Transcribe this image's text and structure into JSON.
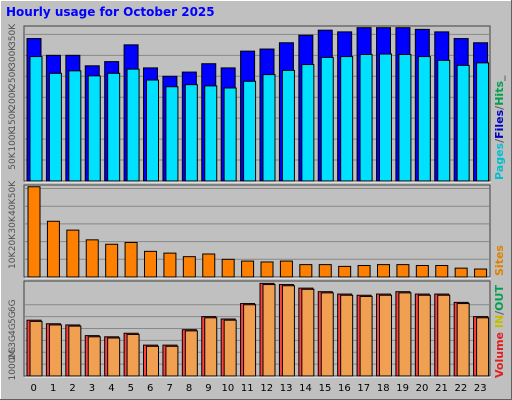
{
  "title": "Hourly usage for October 2025",
  "side_labels": {
    "top": [
      {
        "text": "Pages",
        "color": "#00c0d0"
      },
      {
        "text": "/",
        "color": "#606060"
      },
      {
        "text": "Files",
        "color": "#0000c0"
      },
      {
        "text": "/",
        "color": "#606060"
      },
      {
        "text": "Hits",
        "color": "#00a050"
      },
      {
        "text": "_",
        "color": "#606060"
      }
    ],
    "middle": {
      "text": "Sites",
      "color": "#e08000"
    },
    "bottom": [
      {
        "text": "Volume",
        "color": "#e02020"
      },
      {
        "text": "IN",
        "color": "#c0c000"
      },
      {
        "text": "/",
        "color": "#606060"
      },
      {
        "text": "OUT",
        "color": "#00a050"
      }
    ]
  },
  "colors": {
    "background": "#c0c0c0",
    "files": "#0000ff",
    "pages": "#00e0ff",
    "sites": "#ff8000",
    "volume": "#ff4040",
    "volume_out": "#f0a050",
    "title": "#0000ff",
    "grid": "#888888"
  },
  "chart_data": [
    {
      "type": "bar",
      "name": "hits-files-pages",
      "categories": [
        "0",
        "1",
        "2",
        "3",
        "4",
        "5",
        "6",
        "7",
        "8",
        "9",
        "10",
        "11",
        "12",
        "13",
        "14",
        "15",
        "16",
        "17",
        "18",
        "19",
        "20",
        "21",
        "22",
        "23"
      ],
      "series": [
        {
          "name": "Files",
          "values": [
            340000,
            300000,
            300000,
            275000,
            285000,
            325000,
            270000,
            250000,
            260000,
            280000,
            270000,
            310000,
            315000,
            330000,
            348000,
            360000,
            356000,
            366000,
            366000,
            366000,
            362000,
            356000,
            340000,
            330000
          ]
        },
        {
          "name": "Pages",
          "values": [
            297000,
            257000,
            263000,
            251000,
            257000,
            267000,
            241000,
            225000,
            230000,
            227000,
            222000,
            238000,
            254000,
            264000,
            278000,
            295000,
            297000,
            302000,
            303000,
            302000,
            297000,
            288000,
            276000,
            282000
          ]
        }
      ],
      "ylim": [
        0,
        370000
      ],
      "ytick_labels": [
        "50K",
        "100K",
        "150K",
        "200K",
        "250K",
        "300K",
        "350K"
      ]
    },
    {
      "type": "bar",
      "name": "sites",
      "categories": [
        "0",
        "1",
        "2",
        "3",
        "4",
        "5",
        "6",
        "7",
        "8",
        "9",
        "10",
        "11",
        "12",
        "13",
        "14",
        "15",
        "16",
        "17",
        "18",
        "19",
        "20",
        "21",
        "22",
        "23"
      ],
      "series": [
        {
          "name": "Sites",
          "values": [
            51000,
            31500,
            26500,
            21000,
            18500,
            19500,
            14500,
            13500,
            11500,
            13000,
            10000,
            9000,
            8500,
            9000,
            7000,
            7000,
            6000,
            6500,
            7000,
            7000,
            6500,
            6500,
            5000,
            4500
          ]
        }
      ],
      "ylim": [
        0,
        52000
      ],
      "ytick_labels": [
        "10K",
        "20K",
        "30K",
        "40K",
        "50K"
      ]
    },
    {
      "type": "bar",
      "name": "volume",
      "categories": [
        "0",
        "1",
        "2",
        "3",
        "4",
        "5",
        "6",
        "7",
        "8",
        "9",
        "10",
        "11",
        "12",
        "13",
        "14",
        "15",
        "16",
        "17",
        "18",
        "19",
        "20",
        "21",
        "22",
        "23"
      ],
      "series": [
        {
          "name": "Volume",
          "values": [
            4.7,
            4.4,
            4.3,
            3.4,
            3.3,
            3.6,
            2.6,
            2.6,
            3.9,
            5.0,
            4.8,
            6.1,
            7.8,
            7.7,
            7.4,
            7.1,
            6.9,
            6.8,
            6.9,
            7.1,
            6.9,
            6.9,
            6.2,
            5.0
          ]
        },
        {
          "name": "Volume OUT",
          "values": [
            4.6,
            4.3,
            4.2,
            3.3,
            3.2,
            3.5,
            2.5,
            2.5,
            3.8,
            4.9,
            4.7,
            6.0,
            7.7,
            7.6,
            7.3,
            7.0,
            6.8,
            6.7,
            6.8,
            7.0,
            6.8,
            6.8,
            6.1,
            4.9
          ]
        }
      ],
      "ylim": [
        0,
        8
      ],
      "ytick_labels": [
        "1000M",
        "2G",
        "3G",
        "4G",
        "5G",
        "6G"
      ]
    }
  ]
}
